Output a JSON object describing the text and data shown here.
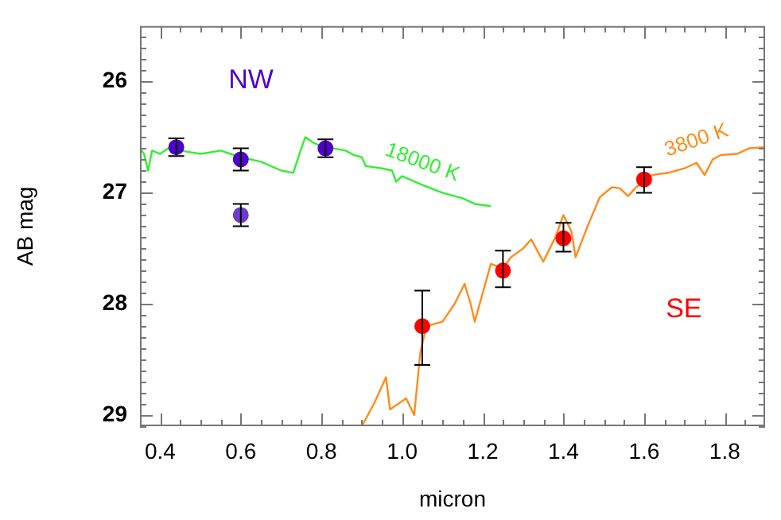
{
  "chart_data": {
    "type": "scatter",
    "xlabel": "micron",
    "ylabel": "AB mag",
    "xlim": [
      0.35,
      1.9
    ],
    "ylim": [
      29.1,
      25.5
    ],
    "xticks": [
      {
        "value": 0.35,
        "label": null
      },
      0.4,
      {
        "value": 0.45,
        "label": null
      },
      {
        "value": 0.5,
        "label": null
      },
      {
        "value": 0.55,
        "label": null
      },
      0.6,
      {
        "value": 0.65,
        "label": null
      },
      {
        "value": 0.7,
        "label": null
      },
      {
        "value": 0.75,
        "label": null
      },
      0.8,
      {
        "value": 0.85,
        "label": null
      },
      {
        "value": 0.9,
        "label": null
      },
      {
        "value": 0.95,
        "label": null
      },
      {
        "value": 1.0,
        "label": "1.0"
      },
      {
        "value": 1.05,
        "label": null
      },
      {
        "value": 1.1,
        "label": null
      },
      {
        "value": 1.15,
        "label": null
      },
      1.2,
      {
        "value": 1.25,
        "label": null
      },
      {
        "value": 1.3,
        "label": null
      },
      {
        "value": 1.35,
        "label": null
      },
      1.4,
      {
        "value": 1.45,
        "label": null
      },
      {
        "value": 1.5,
        "label": null
      },
      {
        "value": 1.55,
        "label": null
      },
      1.6,
      {
        "value": 1.65,
        "label": null
      },
      {
        "value": 1.7,
        "label": null
      },
      {
        "value": 1.75,
        "label": null
      },
      1.8,
      {
        "value": 1.85,
        "label": null
      }
    ],
    "yticks": [
      {
        "value": 25.6,
        "label": null
      },
      {
        "value": 25.7,
        "label": null
      },
      {
        "value": 25.8,
        "label": null
      },
      {
        "value": 25.9,
        "label": null
      },
      26,
      {
        "value": 26.1,
        "label": null
      },
      {
        "value": 26.2,
        "label": null
      },
      {
        "value": 26.3,
        "label": null
      },
      {
        "value": 26.4,
        "label": null
      },
      {
        "value": 26.5,
        "label": null
      },
      {
        "value": 26.6,
        "label": null
      },
      {
        "value": 26.7,
        "label": null
      },
      {
        "value": 26.8,
        "label": null
      },
      {
        "value": 26.9,
        "label": null
      },
      27,
      {
        "value": 27.1,
        "label": null
      },
      {
        "value": 27.2,
        "label": null
      },
      {
        "value": 27.3,
        "label": null
      },
      {
        "value": 27.4,
        "label": null
      },
      {
        "value": 27.5,
        "label": null
      },
      {
        "value": 27.6,
        "label": null
      },
      {
        "value": 27.7,
        "label": null
      },
      {
        "value": 27.8,
        "label": null
      },
      {
        "value": 27.9,
        "label": null
      },
      28,
      {
        "value": 28.1,
        "label": null
      },
      {
        "value": 28.2,
        "label": null
      },
      {
        "value": 28.3,
        "label": null
      },
      {
        "value": 28.4,
        "label": null
      },
      {
        "value": 28.5,
        "label": null
      },
      {
        "value": 28.6,
        "label": null
      },
      {
        "value": 28.7,
        "label": null
      },
      {
        "value": 28.8,
        "label": null
      },
      {
        "value": 28.9,
        "label": null
      },
      29,
      {
        "value": 29.1,
        "label": null
      }
    ],
    "grid": false,
    "legend": false,
    "marker": "circle",
    "series": [
      {
        "type": "line",
        "name": "18000 K",
        "marker": "none",
        "color": "#33ee33",
        "x": [
          0.35,
          0.36,
          0.37,
          0.38,
          0.4,
          0.42,
          0.45,
          0.5,
          0.55,
          0.6,
          0.65,
          0.7,
          0.73,
          0.75,
          0.76,
          0.78,
          0.8,
          0.83,
          0.86,
          0.88,
          0.9,
          0.91,
          0.95,
          0.975,
          0.985,
          1.0,
          1.05,
          1.1,
          1.15,
          1.18,
          1.22
        ],
        "values": [
          26.6,
          26.65,
          26.8,
          26.62,
          26.65,
          26.6,
          26.62,
          26.65,
          26.62,
          26.68,
          26.72,
          26.8,
          26.82,
          26.6,
          26.5,
          26.55,
          26.58,
          26.6,
          26.62,
          26.66,
          26.68,
          26.76,
          26.78,
          26.8,
          26.9,
          26.85,
          26.93,
          27.0,
          27.05,
          27.1,
          27.12
        ]
      },
      {
        "type": "line",
        "name": "3800 K",
        "marker": "none",
        "color": "#ff8c1a",
        "x": [
          0.9,
          0.93,
          0.96,
          0.97,
          0.99,
          1.01,
          1.03,
          1.045,
          1.06,
          1.08,
          1.1,
          1.13,
          1.155,
          1.17,
          1.18,
          1.2,
          1.22,
          1.25,
          1.27,
          1.3,
          1.32,
          1.35,
          1.38,
          1.4,
          1.42,
          1.43,
          1.46,
          1.49,
          1.52,
          1.54,
          1.56,
          1.58,
          1.62,
          1.66,
          1.7,
          1.73,
          1.75,
          1.77,
          1.79,
          1.83,
          1.86,
          1.9
        ],
        "values": [
          29.1,
          28.9,
          28.66,
          28.95,
          28.9,
          28.85,
          29.0,
          28.44,
          28.2,
          28.18,
          28.16,
          28.0,
          27.82,
          28.0,
          28.16,
          27.9,
          27.64,
          27.68,
          27.58,
          27.5,
          27.42,
          27.62,
          27.4,
          27.2,
          27.35,
          27.58,
          27.3,
          27.04,
          26.95,
          26.96,
          27.03,
          26.95,
          26.84,
          26.82,
          26.78,
          26.73,
          26.84,
          26.7,
          26.66,
          26.65,
          26.6,
          26.59
        ]
      },
      {
        "name": "NW",
        "color": "#5000c8",
        "x": [
          0.44,
          0.6,
          0.81
        ],
        "values": [
          26.59,
          26.7,
          26.6
        ],
        "errors": [
          0.08,
          0.1,
          0.08
        ]
      },
      {
        "name": "SE",
        "color": "#ff0000",
        "x": [
          1.05,
          1.25,
          1.4,
          1.6
        ],
        "values": [
          28.2,
          27.7,
          27.41,
          26.88
        ],
        "errors": [
          [
            27.88,
            28.55
          ],
          [
            27.52,
            27.85
          ],
          [
            27.27,
            27.53
          ],
          [
            26.77,
            27.0
          ]
        ]
      },
      {
        "color": "#6a3ccf",
        "x": [
          0.6
        ],
        "values": [
          27.2
        ],
        "errors": [
          0.1
        ]
      }
    ]
  }
}
